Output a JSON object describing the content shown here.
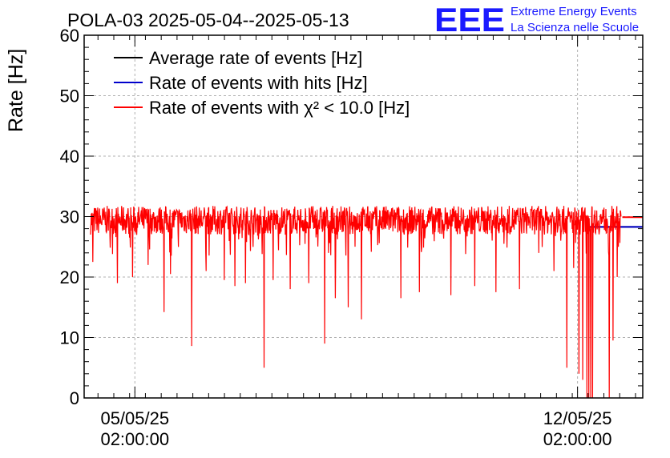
{
  "title": "POLA-03 2025-05-04--2025-05-13",
  "logo": {
    "mark": "EEE",
    "line1": "Extreme Energy Events",
    "line2": "La Scienza nelle Scuole",
    "color": "#1a1aff"
  },
  "chart_data": {
    "type": "line",
    "title": "POLA-03 2025-05-04--2025-05-13",
    "ylabel": "Rate [Hz]",
    "xlabel": "",
    "ylim": [
      0,
      60
    ],
    "xlim": [
      "2025-05-04T06:45:00",
      "2025-05-13T02:45:00"
    ],
    "grid": true,
    "legend_position": "top-left",
    "yticks": [
      0,
      10,
      20,
      30,
      40,
      50,
      60
    ],
    "xticks": [
      {
        "x": "2025-05-05T02:00:00",
        "line1": "05/05/25",
        "line2": "02:00:00"
      },
      {
        "x": "2025-05-12T02:00:00",
        "line1": "12/05/25",
        "line2": "02:00:00"
      }
    ],
    "series": [
      {
        "name": "Average rate of events [Hz]",
        "color": "#000000",
        "values_note": "",
        "x": [
          "2025-05-12T05:00:00",
          "2025-05-13T02:45:00"
        ],
        "y": [
          28.3,
          28.3
        ]
      },
      {
        "name": "Rate of events with hits [Hz]",
        "color": "#0000cc",
        "x": [
          "2025-05-12T05:00:00",
          "2025-05-13T02:45:00"
        ],
        "y": [
          28.3,
          28.3
        ]
      },
      {
        "name": "Rate of events with χ² < 10.0 [Hz]",
        "color": "#ff0000",
        "x": [
          "2025-05-12T19:00:00",
          "2025-05-13T02:45:00"
        ],
        "y": [
          29.9,
          29.9
        ]
      }
    ],
    "rate_trace": {
      "start": "2025-05-04T09:10:00",
      "end": "2025-05-12T18:30:00",
      "baseline": 29.4,
      "band_low": 27.0,
      "band_high": 32.0,
      "dips": [
        {
          "x": "2025-05-04T10:00:00",
          "y": 22.5
        },
        {
          "x": "2025-05-04T19:20:00",
          "y": 19.0
        },
        {
          "x": "2025-05-05T01:10:00",
          "y": 20.0
        },
        {
          "x": "2025-05-05T07:00:00",
          "y": 22.0
        },
        {
          "x": "2025-05-05T13:00:00",
          "y": 14.2
        },
        {
          "x": "2025-05-05T15:30:00",
          "y": 20.5
        },
        {
          "x": "2025-05-05T23:30:00",
          "y": 8.6
        },
        {
          "x": "2025-05-06T05:00:00",
          "y": 21.0
        },
        {
          "x": "2025-05-06T12:00:00",
          "y": 19.5
        },
        {
          "x": "2025-05-06T16:00:00",
          "y": 18.5
        },
        {
          "x": "2025-05-06T20:00:00",
          "y": 19.0
        },
        {
          "x": "2025-05-07T03:00:00",
          "y": 5.0
        },
        {
          "x": "2025-05-07T06:30:00",
          "y": 19.5
        },
        {
          "x": "2025-05-07T13:00:00",
          "y": 18.0
        },
        {
          "x": "2025-05-07T20:00:00",
          "y": 19.0
        },
        {
          "x": "2025-05-08T02:00:00",
          "y": 9.0
        },
        {
          "x": "2025-05-08T06:00:00",
          "y": 16.5
        },
        {
          "x": "2025-05-08T11:00:00",
          "y": 15.0
        },
        {
          "x": "2025-05-08T16:00:00",
          "y": 13.0
        },
        {
          "x": "2025-05-09T07:00:00",
          "y": 16.5
        },
        {
          "x": "2025-05-09T14:00:00",
          "y": 17.5
        },
        {
          "x": "2025-05-10T02:00:00",
          "y": 17.0
        },
        {
          "x": "2025-05-10T11:00:00",
          "y": 18.5
        },
        {
          "x": "2025-05-10T19:00:00",
          "y": 17.5
        },
        {
          "x": "2025-05-11T04:00:00",
          "y": 18.0
        },
        {
          "x": "2025-05-11T17:00:00",
          "y": 21.0
        },
        {
          "x": "2025-05-11T22:00:00",
          "y": 5.0
        },
        {
          "x": "2025-05-12T00:30:00",
          "y": 21.5
        },
        {
          "x": "2025-05-12T02:30:00",
          "y": 4.0
        },
        {
          "x": "2025-05-12T04:00:00",
          "y": 3.0
        },
        {
          "x": "2025-05-12T05:30:00",
          "y": 0.0
        },
        {
          "x": "2025-05-12T06:20:00",
          "y": 0.0
        },
        {
          "x": "2025-05-12T07:00:00",
          "y": 0.0
        },
        {
          "x": "2025-05-12T07:40:00",
          "y": 0.0
        },
        {
          "x": "2025-05-12T14:00:00",
          "y": 0.0
        },
        {
          "x": "2025-05-12T15:30:00",
          "y": 9.5
        },
        {
          "x": "2025-05-12T17:00:00",
          "y": 20.0
        }
      ]
    }
  }
}
